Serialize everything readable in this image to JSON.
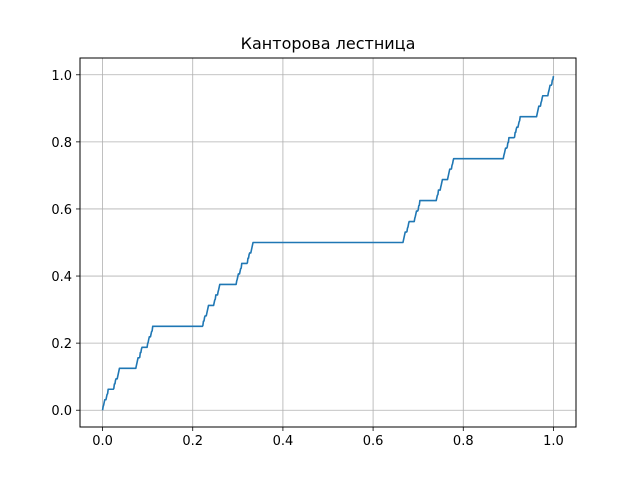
{
  "chart_data": {
    "type": "line",
    "title": "Канторова лестница",
    "xlabel": "",
    "ylabel": "",
    "xlim": [
      -0.05,
      1.05
    ],
    "ylim": [
      -0.05,
      1.05
    ],
    "grid": true,
    "x_ticks": [
      0.0,
      0.2,
      0.4,
      0.6,
      0.8,
      1.0
    ],
    "y_ticks": [
      0.0,
      0.2,
      0.4,
      0.6,
      0.8,
      1.0
    ],
    "x_tick_labels": [
      "0.0",
      "0.2",
      "0.4",
      "0.6",
      "0.8",
      "1.0"
    ],
    "y_tick_labels": [
      "0.0",
      "0.2",
      "0.4",
      "0.6",
      "0.8",
      "1.0"
    ],
    "series": [
      {
        "color": "#1f77b4",
        "function": "Cantor function",
        "x_range": [
          0,
          1
        ],
        "recursion_depth": 7,
        "samples": 800
      }
    ]
  },
  "colors": {
    "grid": "#b0b0b0",
    "axes": "#000000",
    "background": "#ffffff"
  }
}
